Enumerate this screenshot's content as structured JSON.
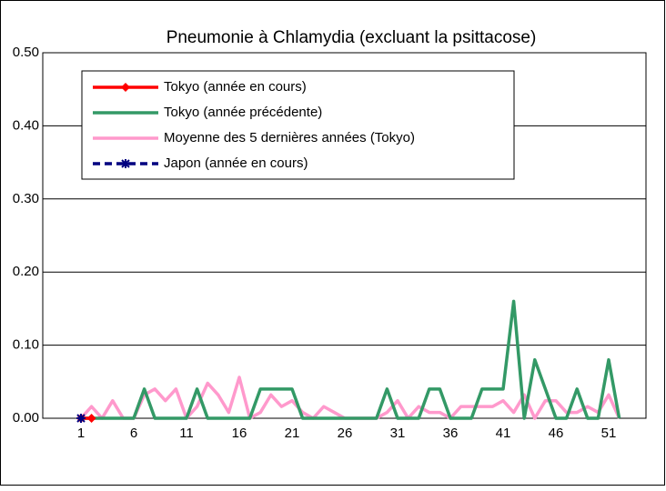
{
  "chart_data": {
    "type": "line",
    "title": "Pneumonie à Chlamydia (excluant la psittacose)",
    "categories": [
      "1",
      null,
      null,
      null,
      null,
      "6",
      null,
      null,
      null,
      null,
      "11",
      null,
      null,
      null,
      null,
      "16",
      null,
      null,
      null,
      null,
      "21",
      null,
      null,
      null,
      null,
      "26",
      null,
      null,
      null,
      null,
      "31",
      null,
      null,
      null,
      null,
      "36",
      null,
      null,
      null,
      null,
      "41",
      null,
      null,
      null,
      null,
      "46",
      null,
      null,
      null,
      null,
      "51",
      null
    ],
    "ylim": [
      0,
      0.5
    ],
    "yticks": [
      {
        "value": 0,
        "label": "0.00"
      },
      {
        "value": 0.1,
        "label": "0.10"
      },
      {
        "value": 0.2,
        "label": "0.20"
      },
      {
        "value": 0.3,
        "label": "0.30"
      },
      {
        "value": 0.4,
        "label": "0.40"
      },
      {
        "value": 0.5,
        "label": "0.50"
      }
    ],
    "grid": true,
    "legend": "top-left",
    "series": [
      {
        "name": "Tokyo (année en cours)",
        "color": "#ff0000",
        "marker": "diamond",
        "dash": false,
        "values": [
          0,
          0,
          null,
          null,
          null,
          null,
          null,
          null,
          null,
          null,
          null,
          null,
          null,
          null,
          null,
          null,
          null,
          null,
          null,
          null,
          null,
          null,
          null,
          null,
          null,
          null,
          null,
          null,
          null,
          null,
          null,
          null,
          null,
          null,
          null,
          null,
          null,
          null,
          null,
          null,
          null,
          null,
          null,
          null,
          null,
          null,
          null,
          null,
          null,
          null,
          null,
          null
        ]
      },
      {
        "name": "Tokyo (année précédente)",
        "color": "#339966",
        "marker": null,
        "dash": false,
        "values": [
          0,
          0,
          0,
          0,
          0,
          0,
          0.04,
          0,
          0,
          0,
          0,
          0.04,
          0,
          0,
          0,
          0,
          0,
          0.04,
          0.04,
          0.04,
          0.04,
          0,
          0,
          0,
          0,
          0,
          0,
          0,
          0,
          0.04,
          0,
          0,
          0,
          0.04,
          0.04,
          0,
          0,
          0,
          0.04,
          0.04,
          0.04,
          0.16,
          0,
          0.08,
          0.04,
          0,
          0,
          0.04,
          0,
          0,
          0.08,
          0
        ]
      },
      {
        "name": "Moyenne des 5 dernières années (Tokyo)",
        "color": "#ff99cc",
        "marker": null,
        "dash": false,
        "values": [
          0,
          0.016,
          0,
          0.024,
          0,
          0,
          0.032,
          0.04,
          0.024,
          0.04,
          0,
          0.016,
          0.048,
          0.032,
          0.008,
          0.056,
          0,
          0.008,
          0.032,
          0.016,
          0.024,
          0.008,
          0,
          0.016,
          0.008,
          0,
          0,
          0,
          0,
          0.008,
          0.024,
          0,
          0.016,
          0.008,
          0.008,
          0,
          0.016,
          0.016,
          0.016,
          0.016,
          0.024,
          0.008,
          0.032,
          0,
          0.024,
          0.024,
          0.008,
          0.008,
          0.016,
          0.008,
          0.032,
          0
        ]
      },
      {
        "name": "Japon (année en cours)",
        "color": "#000080",
        "marker": "star",
        "dash": true,
        "values": [
          0,
          null,
          null,
          null,
          null,
          null,
          null,
          null,
          null,
          null,
          null,
          null,
          null,
          null,
          null,
          null,
          null,
          null,
          null,
          null,
          null,
          null,
          null,
          null,
          null,
          null,
          null,
          null,
          null,
          null,
          null,
          null,
          null,
          null,
          null,
          null,
          null,
          null,
          null,
          null,
          null,
          null,
          null,
          null,
          null,
          null,
          null,
          null,
          null,
          null,
          null,
          null
        ]
      }
    ]
  }
}
